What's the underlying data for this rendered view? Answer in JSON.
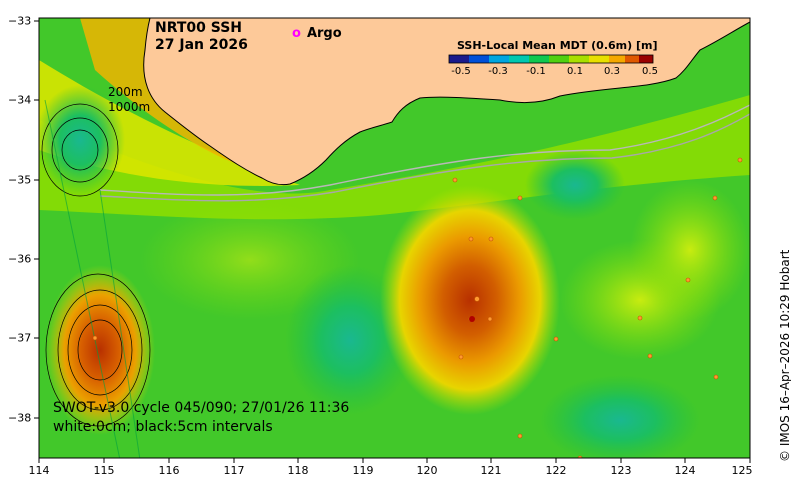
{
  "title": {
    "line1": "NRT00 SSH",
    "line2": "27 Jan 2026"
  },
  "legend": {
    "symbol": "o",
    "label": "Argo",
    "color": "#ff00ff"
  },
  "isobaths": {
    "shallow": "200m",
    "deep": "1000m"
  },
  "colorbar": {
    "title": "SSH-Local Mean MDT (0.6m) [m]",
    "ticks": [
      "-0.5",
      "-0.3",
      "-0.1",
      "0.1",
      "0.3",
      "0.5"
    ],
    "colors": [
      "#1a1a8c",
      "#0050d8",
      "#00a6e0",
      "#00c896",
      "#10c830",
      "#7ee000",
      "#e8f000",
      "#f5b000",
      "#e06800",
      "#c02000",
      "#8c0000"
    ]
  },
  "swot": {
    "line1": "SWOT-v3.0 cycle 045/090; 27/01/26 11:36",
    "line2": "white:0cm; black:5cm intervals"
  },
  "axes": {
    "x_ticks": [
      "114",
      "115",
      "116",
      "117",
      "118",
      "119",
      "120",
      "121",
      "122",
      "123",
      "124",
      "125"
    ],
    "y_ticks": [
      "−33",
      "−34",
      "−35",
      "−36",
      "−37",
      "−38"
    ]
  },
  "credit": "© IMOS 16–Apr–2026 10:29 Hobart",
  "colors": {
    "land": "#fdc999",
    "background_green": "#3fc829"
  }
}
